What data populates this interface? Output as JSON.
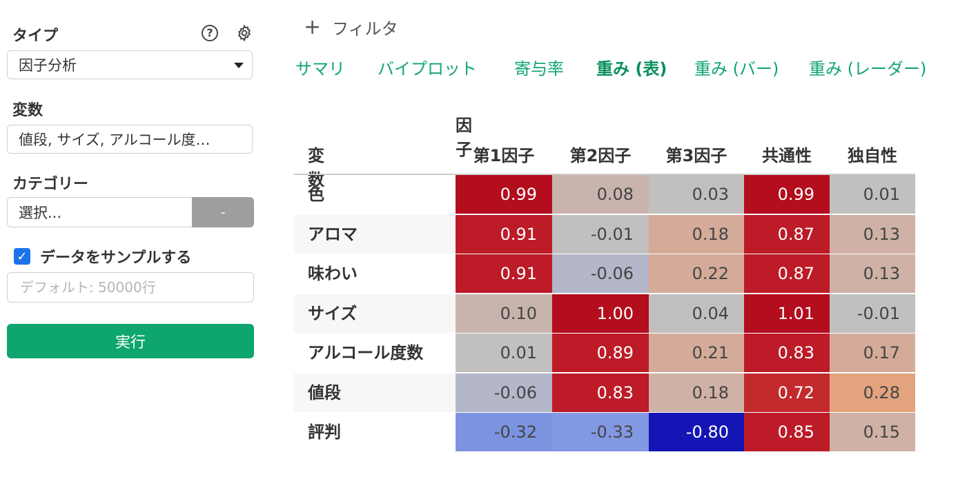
{
  "sidebar": {
    "type_label": "タイプ",
    "type_value": "因子分析",
    "variables_label": "変数",
    "variables_value": "値段, サイズ, アルコール度…",
    "category_label": "カテゴリー",
    "category_value": "選択...",
    "category_button": "-",
    "sample_label": "データをサンプルする",
    "sample_checked": true,
    "sample_placeholder": "デフォルト: 50000行",
    "run_label": "実行",
    "icons": {
      "help": "help-icon",
      "settings": "gear-icon",
      "check": "checkmark-icon"
    }
  },
  "main": {
    "filter_label": "フィルタ",
    "tabs": [
      {
        "label": "サマリ",
        "active": false
      },
      {
        "label": "バイプロット",
        "active": false
      },
      {
        "label": "寄与率",
        "active": false
      },
      {
        "label": "重み (表)",
        "active": true
      },
      {
        "label": "重み (バー)",
        "active": false
      },
      {
        "label": "重み (レーダー)",
        "active": false
      }
    ]
  },
  "table": {
    "group_header": "因子",
    "row_header": "変数",
    "columns": [
      "第1因子",
      "第2因子",
      "第3因子",
      "共通性",
      "独自性"
    ],
    "rows": [
      {
        "label": "色",
        "values": [
          "0.99",
          "0.08",
          "0.03",
          "0.99",
          "0.01"
        ]
      },
      {
        "label": "アロマ",
        "values": [
          "0.91",
          "-0.01",
          "0.18",
          "0.87",
          "0.13"
        ]
      },
      {
        "label": "味わい",
        "values": [
          "0.91",
          "-0.06",
          "0.22",
          "0.87",
          "0.13"
        ]
      },
      {
        "label": "サイズ",
        "values": [
          "0.10",
          "1.00",
          "0.04",
          "1.01",
          "-0.01"
        ]
      },
      {
        "label": "アルコール度数",
        "values": [
          "0.01",
          "0.89",
          "0.21",
          "0.83",
          "0.17"
        ]
      },
      {
        "label": "値段",
        "values": [
          "-0.06",
          "0.83",
          "0.18",
          "0.72",
          "0.28"
        ]
      },
      {
        "label": "評判",
        "values": [
          "-0.32",
          "-0.33",
          "-0.80",
          "0.85",
          "0.15"
        ]
      }
    ],
    "colors": {
      "strong_red": "#b30d1e",
      "red": "#bc1b27",
      "mid_red": "#c32a2c",
      "tan": "#d4ab99",
      "light_tan": "#cfb1a5",
      "beige": "#c8b4ad",
      "grey": "#c2c0bf",
      "blue_grey": "#b4b6c9",
      "orange": "#e3a37f",
      "periwinkle": "#7c93e0",
      "periwinkle2": "#8298e3",
      "dark_blue": "#1515b5"
    },
    "cell_colors": [
      [
        "strong_red",
        "beige",
        "grey",
        "strong_red",
        "grey"
      ],
      [
        "red",
        "grey",
        "tan",
        "red",
        "light_tan"
      ],
      [
        "red",
        "blue_grey",
        "tan",
        "red",
        "light_tan"
      ],
      [
        "beige",
        "strong_red",
        "grey",
        "strong_red",
        "grey"
      ],
      [
        "grey",
        "red",
        "tan",
        "red",
        "tan"
      ],
      [
        "blue_grey",
        "red",
        "light_tan",
        "mid_red",
        "orange"
      ],
      [
        "periwinkle",
        "periwinkle2",
        "dark_blue",
        "red",
        "light_tan"
      ]
    ]
  }
}
